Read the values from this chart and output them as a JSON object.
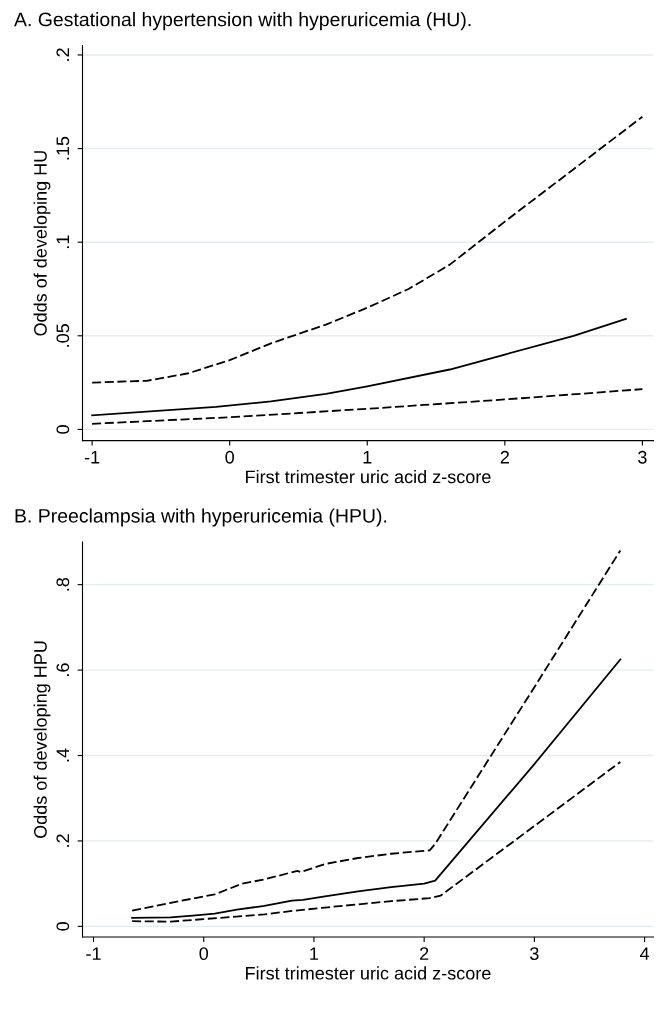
{
  "chart_data": [
    {
      "type": "line",
      "title": "A. Gestational hypertension with hyperuricemia (HU).",
      "xlabel": "First trimester uric acid z-score",
      "ylabel": "Odds of developing HU",
      "xlim": [
        -1.07,
        3.08
      ],
      "xticks": [
        -1,
        0,
        1,
        2,
        3
      ],
      "ylim": [
        -0.006,
        0.205
      ],
      "yticks": [
        {
          "value": 0,
          "label": "0"
        },
        {
          "value": 0.05,
          "label": ".05"
        },
        {
          "value": 0.1,
          "label": ".1"
        },
        {
          "value": 0.15,
          "label": ".15"
        },
        {
          "value": 0.2,
          "label": ".2"
        }
      ],
      "grid": "y",
      "legend": false,
      "series": [
        {
          "color": "#000000",
          "line_style": "dashed",
          "x": [
            -1,
            -0.6,
            -0.3,
            0,
            0.3,
            0.7,
            1,
            1.3,
            1.6,
            2,
            2.5,
            3
          ],
          "values": [
            0.025,
            0.026,
            0.03,
            0.037,
            0.046,
            0.056,
            0.065,
            0.075,
            0.088,
            0.111,
            0.139,
            0.167
          ]
        },
        {
          "color": "#000000",
          "line_style": "solid",
          "x": [
            -1,
            -0.1,
            0.3,
            0.7,
            1,
            1.6,
            2,
            2.5,
            2.88
          ],
          "values": [
            0.0075,
            0.012,
            0.015,
            0.019,
            0.023,
            0.032,
            0.04,
            0.05,
            0.059
          ]
        },
        {
          "color": "#000000",
          "line_style": "dashed",
          "x": [
            -1,
            0,
            1,
            2,
            3
          ],
          "values": [
            0.003,
            0.0065,
            0.011,
            0.016,
            0.0215
          ]
        }
      ]
    },
    {
      "type": "line",
      "title": "B. Preeclampsia with hyperuricemia (HPU).",
      "xlabel": "First trimester uric acid z-score",
      "ylabel": "Odds of developing HPU",
      "xlim": [
        -1.1,
        4.08
      ],
      "xticks": [
        -1,
        0,
        1,
        2,
        3,
        4
      ],
      "ylim": [
        -0.025,
        0.9
      ],
      "yticks": [
        {
          "value": 0,
          "label": "0"
        },
        {
          "value": 0.2,
          "label": ".2"
        },
        {
          "value": 0.4,
          "label": ".4"
        },
        {
          "value": 0.6,
          "label": ".6"
        },
        {
          "value": 0.8,
          "label": ".8"
        }
      ],
      "grid": "y",
      "legend": false,
      "series": [
        {
          "color": "#000000",
          "line_style": "dashed",
          "x": [
            -0.65,
            -0.3,
            0.1,
            0.35,
            0.55,
            0.85,
            0.88,
            1.1,
            1.4,
            1.7,
            2.05,
            2.1,
            3.0,
            3.78
          ],
          "values": [
            0.037,
            0.055,
            0.075,
            0.1,
            0.11,
            0.13,
            0.127,
            0.146,
            0.16,
            0.17,
            0.178,
            0.193,
            0.56,
            0.88
          ]
        },
        {
          "color": "#000000",
          "line_style": "solid",
          "x": [
            -0.65,
            -0.3,
            -0.1,
            0.1,
            0.3,
            0.55,
            0.8,
            0.9,
            1.1,
            1.4,
            1.7,
            2.0,
            2.1,
            3.0,
            3.78
          ],
          "values": [
            0.02,
            0.021,
            0.025,
            0.03,
            0.039,
            0.048,
            0.06,
            0.062,
            0.07,
            0.082,
            0.092,
            0.1,
            0.107,
            0.38,
            0.625
          ]
        },
        {
          "color": "#000000",
          "line_style": "dashed",
          "x": [
            -0.65,
            -0.3,
            0,
            0.55,
            0.8,
            1.1,
            1.7,
            2.05,
            2.15,
            3.0,
            3.78
          ],
          "values": [
            0.012,
            0.011,
            0.017,
            0.028,
            0.036,
            0.044,
            0.059,
            0.066,
            0.072,
            0.235,
            0.385
          ]
        }
      ]
    }
  ]
}
